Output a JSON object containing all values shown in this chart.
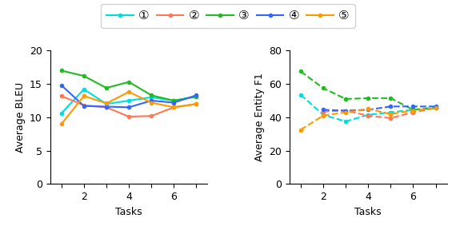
{
  "legend_labels": [
    "①",
    "②",
    "③",
    "④",
    "⑤"
  ],
  "colors": [
    "#00DDDD",
    "#FF7755",
    "#22BB22",
    "#3366FF",
    "#FF9900"
  ],
  "bleu_x": [
    1,
    2,
    3,
    4,
    5,
    6,
    7
  ],
  "bleu_series": [
    [
      10.6,
      14.2,
      12.0,
      12.5,
      13.0,
      12.5,
      13.1
    ],
    [
      13.2,
      11.8,
      11.5,
      10.1,
      10.2,
      11.5,
      12.0
    ],
    [
      17.0,
      16.2,
      14.4,
      15.3,
      13.3,
      12.5,
      13.1
    ],
    [
      14.8,
      11.7,
      11.6,
      11.5,
      12.5,
      12.2,
      13.3
    ],
    [
      9.0,
      13.2,
      12.1,
      13.8,
      12.2,
      11.5,
      12.0
    ]
  ],
  "bleu_ylabel": "Average BLEU",
  "bleu_xlabel": "Tasks",
  "bleu_ylim": [
    0,
    20
  ],
  "bleu_yticks": [
    0,
    5,
    10,
    15,
    20
  ],
  "bleu_xticks": [
    1,
    2,
    3,
    4,
    5,
    6,
    7
  ],
  "bleu_xtick_labels": [
    "",
    "2",
    "",
    "4",
    "",
    "6",
    ""
  ],
  "ef1_x": [
    1,
    2,
    3,
    4,
    5,
    6,
    7
  ],
  "ef1_series": [
    [
      53.5,
      41.5,
      37.5,
      41.5,
      43.0,
      44.5,
      46.0
    ],
    [
      null,
      43.5,
      44.0,
      41.0,
      39.5,
      43.0,
      45.5
    ],
    [
      67.5,
      57.5,
      51.0,
      51.5,
      51.5,
      44.5,
      45.5
    ],
    [
      null,
      44.5,
      44.0,
      44.5,
      46.5,
      46.5,
      46.5
    ],
    [
      32.5,
      41.0,
      43.0,
      45.0,
      42.0,
      44.0,
      45.5
    ]
  ],
  "ef1_ylabel": "Average Entity F1",
  "ef1_xlabel": "Tasks",
  "ef1_ylim": [
    0,
    80
  ],
  "ef1_yticks": [
    0,
    20,
    40,
    60,
    80
  ],
  "ef1_xticks": [
    1,
    2,
    3,
    4,
    5,
    6,
    7
  ],
  "ef1_xtick_labels": [
    "",
    "2",
    "",
    "4",
    "",
    "6",
    ""
  ],
  "label_fontsize": 9,
  "tick_fontsize": 9,
  "legend_fontsize": 11,
  "marker": "o",
  "marker_size": 3,
  "linewidth": 1.5
}
